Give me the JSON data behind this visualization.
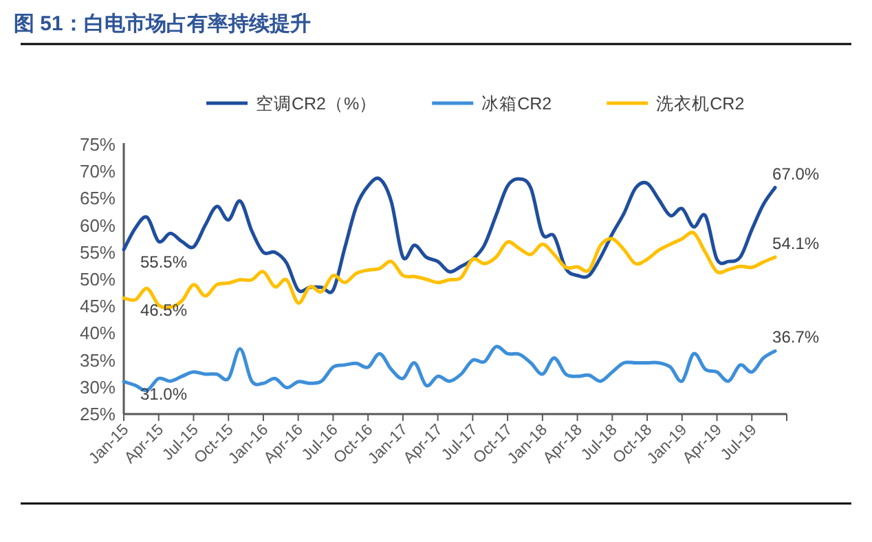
{
  "chart_data": {
    "type": "line",
    "title": "图 51：白电市场占有率持续提升",
    "x": [
      "2015-01",
      "2015-02",
      "2015-03",
      "2015-04",
      "2015-05",
      "2015-06",
      "2015-07",
      "2015-08",
      "2015-09",
      "2015-10",
      "2015-11",
      "2015-12",
      "2016-01",
      "2016-02",
      "2016-03",
      "2016-04",
      "2016-05",
      "2016-06",
      "2016-07",
      "2016-08",
      "2016-09",
      "2016-10",
      "2016-11",
      "2016-12",
      "2017-01",
      "2017-02",
      "2017-03",
      "2017-04",
      "2017-05",
      "2017-06",
      "2017-07",
      "2017-08",
      "2017-09",
      "2017-10",
      "2017-11",
      "2017-12",
      "2018-01",
      "2018-02",
      "2018-03",
      "2018-04",
      "2018-05",
      "2018-06",
      "2018-07",
      "2018-08",
      "2018-09",
      "2018-10",
      "2018-11",
      "2018-12",
      "2019-01",
      "2019-02",
      "2019-03",
      "2019-04",
      "2019-05",
      "2019-06",
      "2019-07",
      "2019-08",
      "2019-09"
    ],
    "series": [
      {
        "name": "空调CR2（%）",
        "color": "#1f4e9c",
        "values": [
          55.5,
          59.5,
          61.5,
          57,
          58.5,
          57,
          56,
          60,
          63.5,
          61,
          64.5,
          59,
          55,
          55,
          53,
          48,
          48.5,
          48.5,
          48,
          55.8,
          63.5,
          67.3,
          68.6,
          64.4,
          54.1,
          56.3,
          54.1,
          53.3,
          51.4,
          52.4,
          53.7,
          56.3,
          61.8,
          67.3,
          68.6,
          66.9,
          58.4,
          58,
          52,
          50.7,
          50.7,
          54.1,
          58.4,
          62.2,
          66.9,
          67.8,
          64.8,
          61.8,
          63.1,
          59.7,
          61.8,
          53.7,
          53.3,
          54.1,
          59.2,
          63.9,
          67.0
        ],
        "value_labels": [
          "55.5%",
          null,
          null,
          null,
          null,
          null,
          null,
          null,
          null,
          null,
          null,
          null,
          null,
          null,
          null,
          null,
          null,
          null,
          null,
          null,
          null,
          null,
          null,
          null,
          null,
          null,
          null,
          null,
          null,
          null,
          null,
          null,
          null,
          null,
          null,
          null,
          null,
          null,
          null,
          null,
          null,
          null,
          null,
          null,
          null,
          null,
          null,
          null,
          null,
          null,
          null,
          null,
          null,
          null,
          null,
          null,
          "67.0%"
        ]
      },
      {
        "name": "冰箱CR2",
        "color": "#3d8fd9",
        "values": [
          31.0,
          30.3,
          29.4,
          31.6,
          31.1,
          32,
          32.8,
          32.4,
          32.4,
          31.6,
          37.1,
          31.1,
          30.7,
          31.6,
          29.9,
          31.0,
          30.7,
          31.1,
          33.7,
          34.1,
          34.4,
          33.7,
          36.2,
          33.3,
          31.6,
          34.5,
          30.3,
          32,
          31.1,
          32.4,
          35,
          34.7,
          37.5,
          36.2,
          36.1,
          34.5,
          32.4,
          35.4,
          32.4,
          32,
          32.2,
          31.1,
          32.8,
          34.5,
          34.5,
          34.5,
          34.5,
          33.7,
          31.1,
          36.2,
          33.3,
          32.8,
          31.1,
          34.1,
          32.8,
          35.4,
          36.7
        ],
        "value_labels": [
          "31.0%",
          null,
          null,
          null,
          null,
          null,
          null,
          null,
          null,
          null,
          null,
          null,
          null,
          null,
          null,
          null,
          null,
          null,
          null,
          null,
          null,
          null,
          null,
          null,
          null,
          null,
          null,
          null,
          null,
          null,
          null,
          null,
          null,
          null,
          null,
          null,
          null,
          null,
          null,
          null,
          null,
          null,
          null,
          null,
          null,
          null,
          null,
          null,
          null,
          null,
          null,
          null,
          null,
          null,
          null,
          null,
          "36.7%"
        ]
      },
      {
        "name": "洗衣机CR2",
        "color": "#ffc000",
        "values": [
          46.5,
          46.2,
          48.3,
          45.2,
          44.8,
          46,
          49,
          46.9,
          49,
          49.3,
          49.9,
          49.9,
          51.4,
          48.6,
          49.9,
          45.6,
          48.6,
          47.7,
          50.7,
          49.4,
          51.1,
          51.7,
          52,
          53.3,
          50.7,
          50.5,
          50,
          49.4,
          49.9,
          50.3,
          53.7,
          52.9,
          54.1,
          56.9,
          55.7,
          54.6,
          56.5,
          54.6,
          52.2,
          52.3,
          51.7,
          56.3,
          57.5,
          55.5,
          52.9,
          53.7,
          55.4,
          56.5,
          57.5,
          58.6,
          55,
          51.4,
          51.8,
          52.4,
          52.2,
          53.2,
          54.1
        ],
        "value_labels": [
          "46.5%",
          null,
          null,
          null,
          null,
          null,
          null,
          null,
          null,
          null,
          null,
          null,
          null,
          null,
          null,
          null,
          null,
          null,
          null,
          null,
          null,
          null,
          null,
          null,
          null,
          null,
          null,
          null,
          null,
          null,
          null,
          null,
          null,
          null,
          null,
          null,
          null,
          null,
          null,
          null,
          null,
          null,
          null,
          null,
          null,
          null,
          null,
          null,
          null,
          null,
          null,
          null,
          null,
          null,
          null,
          null,
          "54.1%"
        ]
      }
    ],
    "xlim": [
      "2015-01",
      "2019-10"
    ],
    "xticks": [
      {
        "value": "2015-01",
        "label": "Jan-15"
      },
      {
        "value": "2015-04",
        "label": "Apr-15"
      },
      {
        "value": "2015-07",
        "label": "Jul-15"
      },
      {
        "value": "2015-10",
        "label": "Oct-15"
      },
      {
        "value": "2016-01",
        "label": "Jan-16"
      },
      {
        "value": "2016-04",
        "label": "Apr-16"
      },
      {
        "value": "2016-07",
        "label": "Jul-16"
      },
      {
        "value": "2016-10",
        "label": "Oct-16"
      },
      {
        "value": "2017-01",
        "label": "Jan-17"
      },
      {
        "value": "2017-04",
        "label": "Apr-17"
      },
      {
        "value": "2017-07",
        "label": "Jul-17"
      },
      {
        "value": "2017-10",
        "label": "Oct-17"
      },
      {
        "value": "2018-01",
        "label": "Jan-18"
      },
      {
        "value": "2018-04",
        "label": "Apr-18"
      },
      {
        "value": "2018-07",
        "label": "Jul-18"
      },
      {
        "value": "2018-10",
        "label": "Oct-18"
      },
      {
        "value": "2019-01",
        "label": "Jan-19"
      },
      {
        "value": "2019-04",
        "label": "Apr-19"
      },
      {
        "value": "2019-07",
        "label": "Jul-19"
      }
    ],
    "ylim": [
      25,
      75
    ],
    "yticks": [
      {
        "value": 25,
        "label": "25%"
      },
      {
        "value": 30,
        "label": "30%"
      },
      {
        "value": 35,
        "label": "35%"
      },
      {
        "value": 40,
        "label": "40%"
      },
      {
        "value": 45,
        "label": "45%"
      },
      {
        "value": 50,
        "label": "50%"
      },
      {
        "value": 55,
        "label": "55%"
      },
      {
        "value": 60,
        "label": "60%"
      },
      {
        "value": 65,
        "label": "65%"
      },
      {
        "value": 70,
        "label": "70%"
      },
      {
        "value": 75,
        "label": "75%"
      }
    ],
    "legend": "top",
    "marker": "none",
    "line_style": "solid"
  }
}
